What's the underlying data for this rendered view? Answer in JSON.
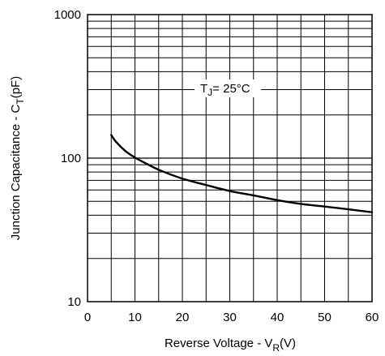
{
  "chart_data": {
    "type": "line",
    "title": "",
    "xlabel": {
      "main": "Reverse Voltage - V",
      "subscript": "R",
      "suffix": "(V)"
    },
    "ylabel": {
      "main": "Junction Capacitance - C",
      "subscript": "T",
      "suffix": "(pF)"
    },
    "xlim": [
      0,
      60
    ],
    "ylim": [
      10,
      1000
    ],
    "yscale": "log",
    "grid": true,
    "x_ticks": [
      "0",
      "10",
      "20",
      "30",
      "40",
      "50",
      "60"
    ],
    "y_ticks": [
      "10",
      "100",
      "1000"
    ],
    "annotation": {
      "main": "T",
      "subscript": "J",
      "suffix": "= 25°C"
    },
    "series": [
      {
        "x": [
          5,
          6,
          8,
          10,
          12,
          15,
          20,
          25,
          30,
          35,
          40,
          45,
          50,
          55,
          60
        ],
        "y": [
          145,
          130,
          112,
          101,
          93,
          83,
          72,
          65,
          59,
          55,
          51,
          48,
          46,
          44,
          42
        ]
      }
    ]
  }
}
